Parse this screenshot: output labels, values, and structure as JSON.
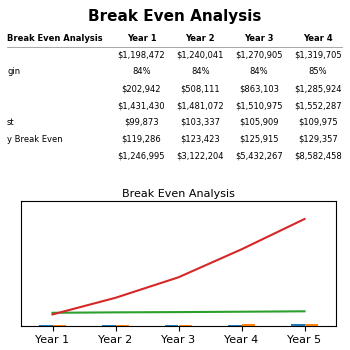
{
  "chart_data": {
    "type": "bar",
    "title": "Break Even Analysis",
    "chart_title": "Break Even Analysis",
    "categories": [
      "Year 1",
      "Year 2",
      "Year 3",
      "Year 4",
      "Year 5"
    ],
    "series": [
      {
        "type": "bar",
        "color": "#1f77b4",
        "values": [
          99873,
          103337,
          105909,
          109975,
          114000
        ]
      },
      {
        "type": "bar",
        "color": "#ff7f0e",
        "values": [
          1000,
          20000,
          50000,
          120000,
          200000
        ]
      },
      {
        "type": "line",
        "color": "#2ca02c",
        "values": [
          1431430,
          1481072,
          1510975,
          1552287,
          1600000
        ]
      },
      {
        "type": "line",
        "color": "#d62728",
        "values": [
          1246995,
          3122204,
          5432267,
          8582458,
          12000000
        ]
      }
    ],
    "ylim": [
      0,
      14000000
    ],
    "yticks": [],
    "tick_labels": "x",
    "table": {
      "columns": [
        "Break Even Analysis",
        "Year 1",
        "Year 2",
        "Year 3",
        "Year 4"
      ],
      "rows": [
        {
          "label": null,
          "values": [
            "$1,198,472",
            "$1,240,041",
            "$1,270,905",
            "$1,319,705"
          ]
        },
        {
          "label": "gin",
          "values": [
            "84%",
            "84%",
            "84%",
            "85%"
          ]
        },
        {
          "label": null,
          "values": [
            "$202,942",
            "$508,111",
            "$863,103",
            "$1,285,924"
          ]
        },
        {
          "label": null,
          "values": [
            "$1,431,430",
            "$1,481,072",
            "$1,510,975",
            "$1,552,287"
          ]
        },
        {
          "label": "st",
          "values": [
            "$99,873",
            "$103,337",
            "$105,909",
            "$109,975"
          ]
        },
        {
          "label": "y Break Even",
          "values": [
            "$119,286",
            "$123,423",
            "$125,915",
            "$129,357"
          ]
        },
        {
          "label": null,
          "values": [
            "$1,246,995",
            "$3,122,204",
            "$5,432,267",
            "$8,582,458"
          ]
        }
      ]
    }
  }
}
